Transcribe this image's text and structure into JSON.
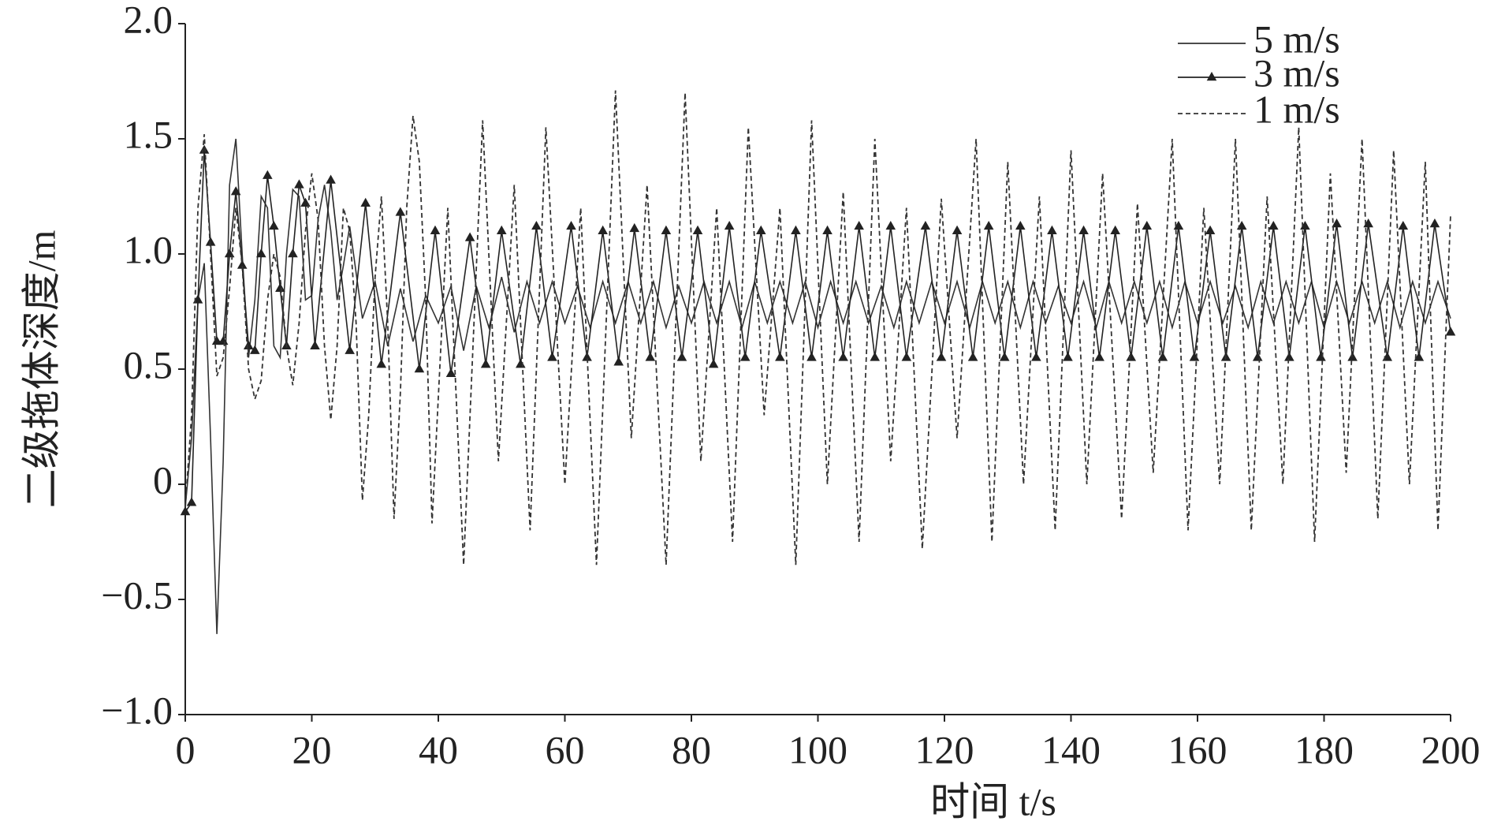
{
  "chart_data": {
    "type": "line",
    "x_label": "时间 t/s",
    "y_label": "二级拖体深度/m",
    "xlim": [
      0,
      200
    ],
    "xticks": [
      0,
      20,
      40,
      60,
      80,
      100,
      120,
      140,
      160,
      180,
      200
    ],
    "ylim": [
      -1,
      2
    ],
    "yticks": [
      {
        "value": -1,
        "label": "−1.0"
      },
      {
        "value": -0.5,
        "label": "−0.5"
      },
      0,
      {
        "value": 0.5,
        "label": "0.5"
      },
      {
        "value": 1,
        "label": "1.0"
      },
      {
        "value": 1.5,
        "label": "1.5"
      },
      {
        "value": 2,
        "label": "2.0"
      }
    ],
    "grid": false,
    "legend": "upper right",
    "series": [
      {
        "name": "5 m/s",
        "color": "#333333",
        "linestyle": "solid",
        "marker": "none",
        "x": [
          0,
          1,
          2,
          3,
          4,
          5,
          6,
          7,
          8,
          9,
          10,
          11,
          12,
          13,
          14,
          15,
          16,
          17,
          18,
          19,
          20,
          21,
          22,
          23,
          24,
          25,
          26,
          28,
          30,
          32,
          34,
          36,
          38,
          40,
          42,
          44,
          46,
          48,
          50,
          52,
          54,
          56,
          58,
          60,
          62,
          64,
          66,
          68,
          70,
          72,
          74,
          76,
          78,
          80,
          82,
          84,
          86,
          88,
          90,
          92,
          94,
          96,
          98,
          100,
          102,
          104,
          106,
          108,
          110,
          112,
          114,
          116,
          118,
          120,
          122,
          124,
          126,
          128,
          130,
          132,
          134,
          136,
          138,
          140,
          142,
          144,
          146,
          148,
          150,
          152,
          154,
          156,
          158,
          160,
          162,
          164,
          166,
          168,
          170,
          172,
          174,
          176,
          178,
          180,
          182,
          184,
          186,
          188,
          190,
          192,
          194,
          196,
          198,
          200
        ],
        "values": [
          -0.1,
          0.2,
          0.8,
          0.96,
          0.2,
          -0.65,
          0.1,
          1.3,
          1.5,
          1.0,
          0.55,
          0.8,
          1.25,
          1.2,
          0.6,
          0.55,
          1.0,
          1.28,
          1.25,
          0.8,
          0.82,
          1.15,
          1.3,
          1.1,
          0.8,
          0.95,
          1.12,
          0.72,
          0.88,
          0.6,
          0.85,
          0.62,
          0.82,
          0.7,
          0.86,
          0.58,
          0.86,
          0.68,
          0.9,
          0.66,
          0.88,
          0.7,
          0.88,
          0.7,
          0.86,
          0.68,
          0.88,
          0.7,
          0.88,
          0.7,
          0.88,
          0.68,
          0.86,
          0.7,
          0.88,
          0.7,
          0.88,
          0.68,
          0.88,
          0.7,
          0.88,
          0.7,
          0.88,
          0.68,
          0.88,
          0.7,
          0.88,
          0.7,
          0.86,
          0.68,
          0.88,
          0.7,
          0.88,
          0.7,
          0.88,
          0.68,
          0.88,
          0.7,
          0.88,
          0.68,
          0.88,
          0.7,
          0.86,
          0.7,
          0.88,
          0.68,
          0.88,
          0.7,
          0.88,
          0.7,
          0.88,
          0.68,
          0.88,
          0.7,
          0.88,
          0.7,
          0.86,
          0.68,
          0.88,
          0.7,
          0.88,
          0.7,
          0.88,
          0.68,
          0.88,
          0.7,
          0.88,
          0.7,
          0.88,
          0.68,
          0.88,
          0.7,
          0.88,
          0.72
        ]
      },
      {
        "name": "3 m/s",
        "color": "#222222",
        "linestyle": "solid",
        "marker": "triangle",
        "x": [
          0,
          1,
          2,
          3,
          4,
          5,
          6,
          7,
          8,
          9,
          10,
          11,
          12,
          13,
          14,
          15,
          16,
          17,
          18,
          19,
          20.5,
          23,
          26,
          28.5,
          31,
          34,
          37,
          39.5,
          42,
          45,
          47.5,
          50,
          53,
          55.5,
          58,
          61,
          63.5,
          66,
          68.5,
          71,
          73.5,
          76,
          78.5,
          81,
          83.5,
          86,
          88.5,
          91,
          94,
          96.5,
          99,
          101.5,
          104,
          106.5,
          109,
          111.5,
          114,
          117,
          119.5,
          122,
          124.5,
          127,
          129.5,
          132,
          134.5,
          137,
          139.5,
          142,
          144.5,
          147,
          149.5,
          152,
          154.5,
          157,
          159.5,
          162,
          164.5,
          167,
          169.5,
          172,
          174.5,
          177,
          179.5,
          182,
          184.5,
          187,
          190,
          192.5,
          195,
          197.5,
          200
        ],
        "values": [
          -0.12,
          -0.08,
          0.8,
          1.45,
          1.05,
          0.62,
          0.62,
          1.0,
          1.27,
          0.95,
          0.6,
          0.58,
          1.0,
          1.34,
          1.12,
          0.85,
          0.6,
          1.0,
          1.3,
          1.22,
          0.6,
          1.32,
          0.58,
          1.22,
          0.52,
          1.18,
          0.5,
          1.1,
          0.48,
          1.07,
          0.52,
          1.1,
          0.52,
          1.12,
          0.55,
          1.12,
          0.55,
          1.1,
          0.53,
          1.11,
          0.55,
          1.1,
          0.55,
          1.1,
          0.52,
          1.12,
          0.55,
          1.1,
          0.55,
          1.1,
          0.55,
          1.1,
          0.55,
          1.12,
          0.55,
          1.12,
          0.55,
          1.12,
          0.55,
          1.1,
          0.55,
          1.12,
          0.55,
          1.12,
          0.55,
          1.1,
          0.55,
          1.1,
          0.55,
          1.1,
          0.55,
          1.12,
          0.55,
          1.12,
          0.55,
          1.1,
          0.55,
          1.12,
          0.55,
          1.12,
          0.55,
          1.12,
          0.55,
          1.13,
          0.55,
          1.13,
          0.55,
          1.12,
          0.55,
          1.13,
          0.66
        ]
      },
      {
        "name": "1 m/s",
        "color": "#333333",
        "linestyle": "dashed",
        "marker": "none",
        "x": [
          0,
          1,
          2,
          3,
          4,
          5,
          6,
          7,
          8,
          9,
          10,
          11,
          12,
          13,
          14,
          15,
          16,
          17,
          18,
          19,
          20,
          21,
          22,
          23,
          24,
          25,
          26,
          27,
          28,
          29,
          30,
          31,
          32,
          33,
          34,
          35,
          36,
          37,
          38,
          39,
          41.5,
          44,
          47,
          49.5,
          52,
          54.5,
          57,
          60,
          62.5,
          65,
          68,
          70.5,
          73,
          76,
          79,
          81.5,
          84,
          86.5,
          89,
          91.5,
          94,
          96.5,
          99,
          101.5,
          104,
          106.5,
          109,
          111.5,
          114,
          116.5,
          119.5,
          122,
          125,
          127.5,
          130,
          132.5,
          135,
          137.5,
          140,
          142.5,
          145,
          148,
          150.5,
          153,
          156,
          158.5,
          161,
          163.5,
          166,
          168.5,
          171,
          173.5,
          176,
          178.5,
          181,
          183.5,
          186,
          188.5,
          191,
          193.5,
          196,
          198,
          200
        ],
        "values": [
          -0.1,
          0.3,
          1.2,
          1.52,
          1.0,
          0.47,
          0.55,
          0.85,
          1.2,
          0.95,
          0.5,
          0.37,
          0.45,
          0.8,
          1.0,
          0.9,
          0.6,
          0.43,
          0.7,
          1.1,
          1.35,
          1.15,
          0.6,
          0.28,
          0.6,
          1.2,
          1.1,
          0.7,
          -0.07,
          0.3,
          0.9,
          1.25,
          0.7,
          -0.15,
          0.4,
          1.2,
          1.6,
          1.4,
          0.8,
          -0.17,
          1.2,
          -0.35,
          1.58,
          0.1,
          1.3,
          -0.2,
          1.55,
          0.0,
          1.2,
          -0.35,
          1.71,
          0.2,
          1.3,
          -0.35,
          1.7,
          0.1,
          1.2,
          -0.25,
          1.55,
          0.3,
          1.2,
          -0.35,
          1.58,
          0.0,
          1.27,
          -0.25,
          1.5,
          0.1,
          1.2,
          -0.28,
          1.24,
          0.2,
          1.5,
          -0.25,
          1.4,
          0.0,
          1.25,
          -0.2,
          1.45,
          0.0,
          1.35,
          -0.15,
          1.22,
          0.05,
          1.5,
          -0.2,
          1.2,
          0.0,
          1.5,
          -0.2,
          1.25,
          0.0,
          1.55,
          -0.25,
          1.35,
          0.05,
          1.5,
          -0.15,
          1.45,
          0.0,
          1.4,
          -0.2,
          1.17
        ]
      }
    ]
  }
}
